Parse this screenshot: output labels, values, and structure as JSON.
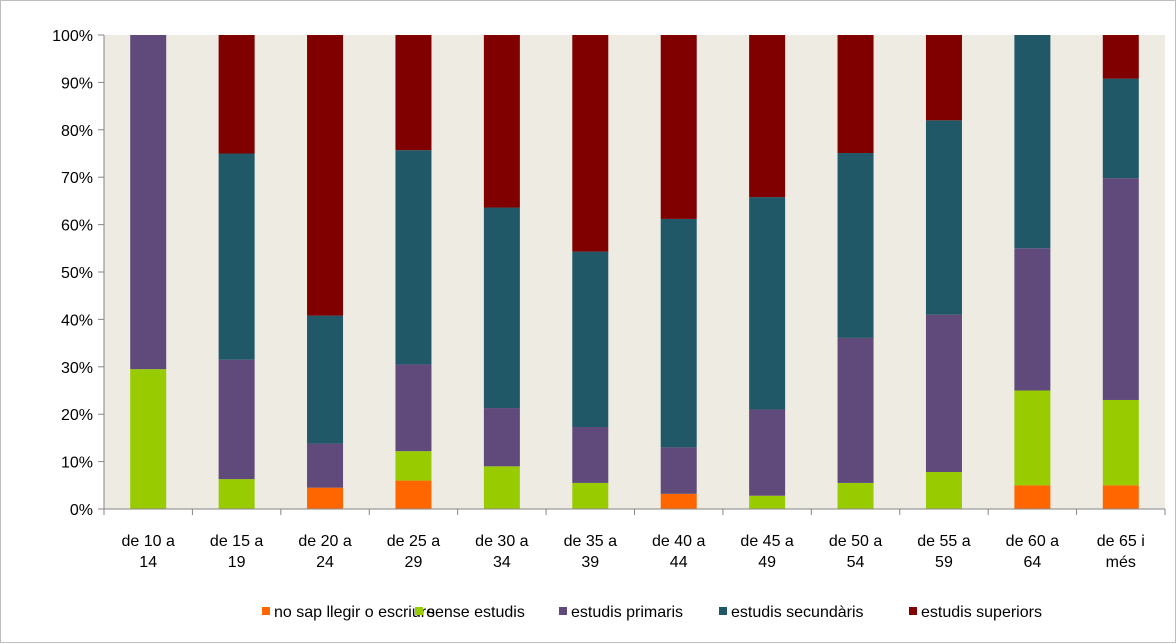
{
  "chart_data": {
    "type": "bar",
    "stacked": true,
    "percent": true,
    "categories": [
      [
        "de 10 a",
        "14"
      ],
      [
        "de 15 a",
        "19"
      ],
      [
        "de 20 a",
        "24"
      ],
      [
        "de 25 a",
        "29"
      ],
      [
        "de 30 a",
        "34"
      ],
      [
        "de 35 a",
        "39"
      ],
      [
        "de 40 a",
        "44"
      ],
      [
        "de 45 a",
        "49"
      ],
      [
        "de 50 a",
        "54"
      ],
      [
        "de 55 a",
        "59"
      ],
      [
        "de 60 a",
        "64"
      ],
      [
        "de 65 i",
        "més"
      ]
    ],
    "series": [
      {
        "name": "no sap llegir o escriure",
        "color": "#ff6600",
        "values": [
          0,
          0,
          4.5,
          6,
          0,
          0,
          3.2,
          0,
          0,
          0,
          5,
          5
        ]
      },
      {
        "name": "sense estudis",
        "color": "#99cc00",
        "values": [
          29.5,
          6.3,
          0,
          6.2,
          9,
          5.5,
          0,
          2.8,
          5.5,
          7.8,
          20,
          18
        ]
      },
      {
        "name": "estudis primaris",
        "color": "#604a7b",
        "values": [
          70.5,
          25.2,
          9.3,
          18.3,
          12.3,
          11.8,
          9.8,
          18.2,
          30.6,
          33.2,
          30,
          46.8
        ]
      },
      {
        "name": "estudis secundàris",
        "color": "#215868",
        "values": [
          0,
          43.5,
          27,
          45.2,
          42.3,
          37,
          48.2,
          44.8,
          39,
          41,
          45,
          21
        ]
      },
      {
        "name": "estudis superiors",
        "color": "#800000",
        "values": [
          0,
          25,
          59.2,
          24.3,
          36.4,
          45.7,
          38.8,
          34.2,
          24.9,
          18,
          0,
          9.2
        ]
      }
    ],
    "yticks": [
      "0%",
      "10%",
      "20%",
      "30%",
      "40%",
      "50%",
      "60%",
      "70%",
      "80%",
      "90%",
      "100%"
    ],
    "ylim": [
      0,
      100
    ],
    "plot_background": "#eeebe2",
    "grid": false,
    "legend_position": "bottom"
  }
}
